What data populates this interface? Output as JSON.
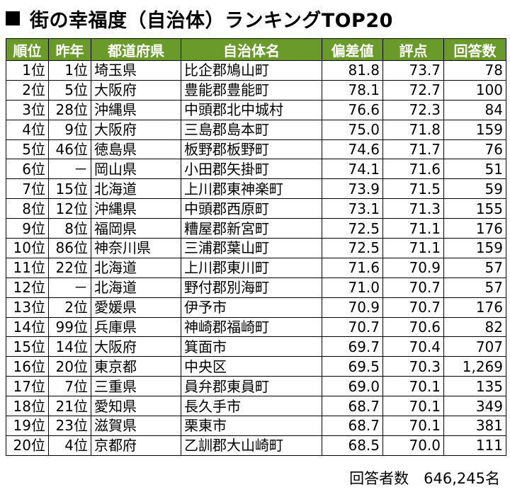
{
  "title": "街の幸福度（自治体）ランキングTOP20",
  "chart_data": {
    "type": "table",
    "columns": [
      "順位",
      "昨年",
      "都道府県",
      "自治体名",
      "偏差値",
      "評点",
      "回答数"
    ],
    "rows": [
      [
        "1位",
        "1位",
        "埼玉県",
        "比企郡鳩山町",
        "81.8",
        "73.7",
        "78"
      ],
      [
        "2位",
        "5位",
        "大阪府",
        "豊能郡豊能町",
        "78.1",
        "72.7",
        "100"
      ],
      [
        "3位",
        "28位",
        "沖縄県",
        "中頭郡北中城村",
        "76.6",
        "72.3",
        "84"
      ],
      [
        "4位",
        "9位",
        "大阪府",
        "三島郡島本町",
        "75.0",
        "71.8",
        "159"
      ],
      [
        "5位",
        "46位",
        "徳島県",
        "板野郡板野町",
        "74.6",
        "71.7",
        "76"
      ],
      [
        "6位",
        "－",
        "岡山県",
        "小田郡矢掛町",
        "74.1",
        "71.6",
        "51"
      ],
      [
        "7位",
        "15位",
        "北海道",
        "上川郡東神楽町",
        "73.9",
        "71.5",
        "59"
      ],
      [
        "8位",
        "12位",
        "沖縄県",
        "中頭郡西原町",
        "73.1",
        "71.3",
        "155"
      ],
      [
        "9位",
        "8位",
        "福岡県",
        "糟屋郡新宮町",
        "72.5",
        "71.1",
        "176"
      ],
      [
        "10位",
        "86位",
        "神奈川県",
        "三浦郡葉山町",
        "72.5",
        "71.1",
        "159"
      ],
      [
        "11位",
        "22位",
        "北海道",
        "上川郡東川町",
        "71.6",
        "70.9",
        "57"
      ],
      [
        "12位",
        "－",
        "北海道",
        "野付郡別海町",
        "71.0",
        "70.7",
        "57"
      ],
      [
        "13位",
        "2位",
        "愛媛県",
        "伊予市",
        "70.9",
        "70.7",
        "176"
      ],
      [
        "14位",
        "99位",
        "兵庫県",
        "神崎郡福崎町",
        "70.7",
        "70.6",
        "82"
      ],
      [
        "15位",
        "14位",
        "大阪府",
        "箕面市",
        "69.7",
        "70.4",
        "707"
      ],
      [
        "16位",
        "20位",
        "東京都",
        "中央区",
        "69.5",
        "70.3",
        "1,269"
      ],
      [
        "17位",
        "7位",
        "三重県",
        "員弁郡東員町",
        "69.0",
        "70.1",
        "135"
      ],
      [
        "18位",
        "21位",
        "愛知県",
        "長久手市",
        "68.7",
        "70.1",
        "349"
      ],
      [
        "19位",
        "23位",
        "滋賀県",
        "栗東市",
        "68.7",
        "70.1",
        "381"
      ],
      [
        "20位",
        "4位",
        "京都府",
        "乙訓郡大山崎町",
        "68.5",
        "70.0",
        "111"
      ]
    ]
  },
  "footer": "回答者数　646,245名",
  "colors": {
    "header_bg": "#6a9a2a",
    "header_text": "#ffffff"
  }
}
